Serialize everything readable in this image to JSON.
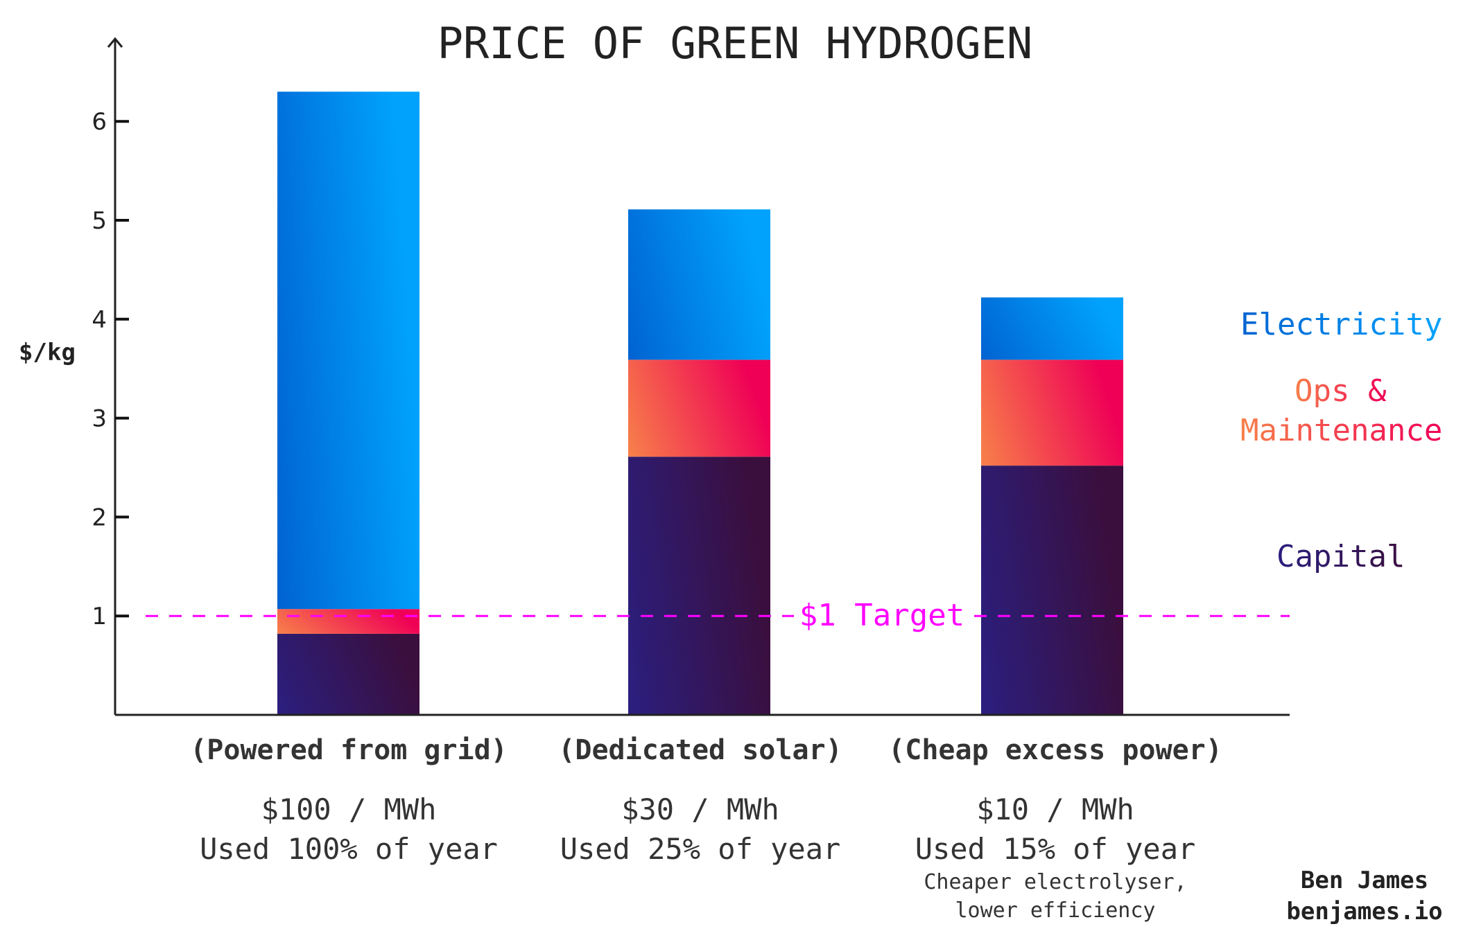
{
  "chart_data": {
    "type": "bar",
    "stacked": true,
    "title": "PRICE OF GREEN HYDROGEN",
    "ylabel": "$/kg",
    "ylim": [
      0,
      6.5
    ],
    "yticks": [
      "1",
      "2",
      "3",
      "4",
      "5",
      "6"
    ],
    "grid": false,
    "legend_placement": "right",
    "categories": [
      "(Powered from grid)",
      "(Dedicated solar)",
      "(Cheap excess power)"
    ],
    "category_notes": [
      {
        "price": "$100 / MWh",
        "usage": "Used 100% of year",
        "extra": []
      },
      {
        "price": "$30 / MWh",
        "usage": "Used 25% of year",
        "extra": []
      },
      {
        "price": "$10 / MWh",
        "usage": "Used 15% of year",
        "extra": [
          "Cheaper electrolyser,",
          "lower efficiency"
        ]
      }
    ],
    "series": [
      {
        "name": "Capital",
        "values": [
          0.82,
          2.61,
          2.52
        ],
        "colors": [
          "#2b1f7f",
          "#3a0f3e"
        ]
      },
      {
        "name": "Ops & Maintenance",
        "label_lines": [
          "Ops &",
          "Maintenance"
        ],
        "values": [
          0.25,
          0.98,
          1.07
        ],
        "colors": [
          "#f7814a",
          "#ef0056"
        ]
      },
      {
        "name": "Electricity",
        "values": [
          5.23,
          1.52,
          0.63
        ],
        "colors": [
          "#0063d1",
          "#00a2fc"
        ]
      }
    ],
    "reference_line": {
      "value": 1,
      "label": "$1 Target",
      "color": "#ff00ff"
    }
  },
  "credit": {
    "name": "Ben James",
    "site": "benjames.io"
  }
}
